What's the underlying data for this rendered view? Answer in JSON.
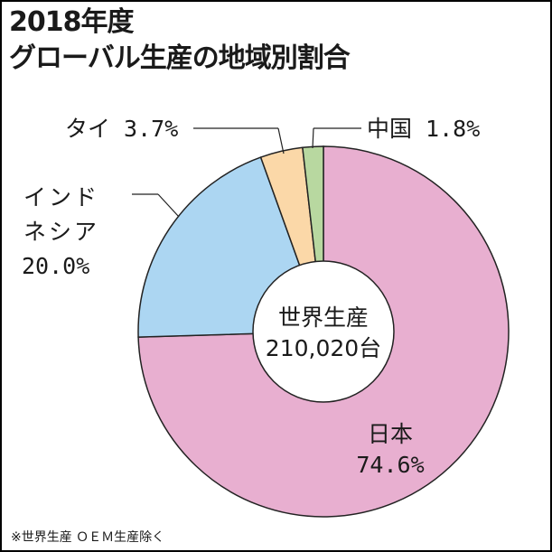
{
  "chart_data": {
    "type": "pie",
    "title": "2018年度",
    "subtitle": "グローバル生産の地域別割合",
    "slices": [
      {
        "name": "日本",
        "value": 74.6,
        "label": "74.6%",
        "color": "#e8afd0"
      },
      {
        "name": "インドネシア",
        "value": 20.0,
        "label": "20.0%",
        "color": "#acd6f2"
      },
      {
        "name": "タイ",
        "value": 3.7,
        "label": "3.7%",
        "color": "#fbd8a8"
      },
      {
        "name": "中国",
        "value": 1.8,
        "label": "1.8%",
        "color": "#b8d8a0"
      }
    ],
    "center": {
      "line1": "世界生産",
      "line2": "210,020台"
    },
    "labels": {
      "japan_name": "日本",
      "japan_pct": "74.6%",
      "indonesia_line1": "インド",
      "indonesia_line2": "ネシア",
      "indonesia_pct": "20.0%",
      "thai": "タイ 3.7%",
      "china": "中国 1.8%"
    },
    "footnote": "※世界生産 ＯＥＭ生産除く"
  }
}
